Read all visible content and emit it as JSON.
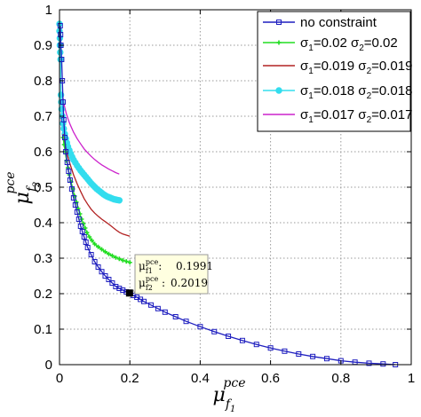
{
  "chart_data": {
    "type": "line",
    "xlabel": "μ_f1^pce",
    "ylabel": "μ_f2^pce",
    "xlim": [
      0,
      1
    ],
    "ylim": [
      0,
      1
    ],
    "xticks": [
      "0",
      "0.2",
      "0.4",
      "0.6",
      "0.8",
      "1"
    ],
    "yticks": [
      "0",
      "0.1",
      "0.2",
      "0.3",
      "0.4",
      "0.5",
      "0.6",
      "0.7",
      "0.8",
      "0.9",
      "1"
    ],
    "grid": true,
    "legend_position": "top-right",
    "series": [
      {
        "name": "no constraint",
        "color": "#1f1fbf",
        "marker": "square",
        "x": [
          0.002,
          0.003,
          0.004,
          0.006,
          0.008,
          0.01,
          0.012,
          0.015,
          0.018,
          0.022,
          0.026,
          0.03,
          0.035,
          0.04,
          0.045,
          0.05,
          0.055,
          0.06,
          0.065,
          0.07,
          0.075,
          0.08,
          0.09,
          0.1,
          0.11,
          0.12,
          0.13,
          0.14,
          0.15,
          0.16,
          0.17,
          0.18,
          0.19,
          0.1991,
          0.21,
          0.22,
          0.23,
          0.24,
          0.26,
          0.28,
          0.3,
          0.33,
          0.36,
          0.4,
          0.44,
          0.48,
          0.52,
          0.56,
          0.6,
          0.64,
          0.68,
          0.72,
          0.76,
          0.8,
          0.84,
          0.88,
          0.92,
          0.955
        ],
        "y": [
          0.955,
          0.93,
          0.9,
          0.86,
          0.8,
          0.74,
          0.69,
          0.64,
          0.6,
          0.57,
          0.545,
          0.52,
          0.495,
          0.47,
          0.45,
          0.43,
          0.41,
          0.39,
          0.375,
          0.36,
          0.345,
          0.33,
          0.31,
          0.29,
          0.275,
          0.262,
          0.25,
          0.24,
          0.23,
          0.22,
          0.215,
          0.21,
          0.205,
          0.2019,
          0.195,
          0.19,
          0.184,
          0.178,
          0.168,
          0.158,
          0.148,
          0.135,
          0.122,
          0.107,
          0.093,
          0.08,
          0.068,
          0.057,
          0.047,
          0.038,
          0.03,
          0.023,
          0.017,
          0.011,
          0.007,
          0.004,
          0.002,
          0.0
        ]
      },
      {
        "name": "σ1=0.02 σ2=0.02",
        "color": "#22dd22",
        "marker": "star",
        "x": [
          0.01,
          0.013,
          0.016,
          0.02,
          0.024,
          0.028,
          0.033,
          0.038,
          0.043,
          0.048,
          0.053,
          0.058,
          0.063,
          0.068,
          0.073,
          0.078,
          0.085,
          0.092,
          0.1,
          0.11,
          0.12,
          0.13,
          0.14,
          0.15,
          0.16,
          0.17,
          0.18,
          0.19,
          0.2
        ],
        "y": [
          0.64,
          0.62,
          0.6,
          0.575,
          0.555,
          0.535,
          0.515,
          0.495,
          0.475,
          0.458,
          0.44,
          0.425,
          0.41,
          0.397,
          0.385,
          0.372,
          0.36,
          0.35,
          0.34,
          0.332,
          0.325,
          0.318,
          0.312,
          0.307,
          0.302,
          0.298,
          0.294,
          0.291,
          0.288
        ]
      },
      {
        "name": "σ1=0.019 σ2=0.019",
        "color": "#b22222",
        "marker": "none",
        "x": [
          0.01,
          0.015,
          0.02,
          0.03,
          0.04,
          0.05,
          0.06,
          0.07,
          0.08,
          0.09,
          0.1,
          0.11,
          0.12,
          0.13,
          0.14,
          0.15,
          0.16,
          0.17,
          0.18,
          0.2
        ],
        "y": [
          0.65,
          0.625,
          0.6,
          0.565,
          0.535,
          0.51,
          0.488,
          0.468,
          0.452,
          0.438,
          0.427,
          0.418,
          0.41,
          0.403,
          0.396,
          0.388,
          0.38,
          0.373,
          0.368,
          0.362
        ]
      },
      {
        "name": "σ1=0.018 σ2=0.018",
        "color": "#33ddee",
        "marker": "circle",
        "x": [
          0.0,
          0.0,
          0.001,
          0.001,
          0.002,
          0.003,
          0.004,
          0.005,
          0.006,
          0.008,
          0.01,
          0.012,
          0.015,
          0.018,
          0.021,
          0.024,
          0.028,
          0.032,
          0.036,
          0.04,
          0.045,
          0.05,
          0.055,
          0.06,
          0.065,
          0.07,
          0.075,
          0.08,
          0.085,
          0.09,
          0.095,
          0.1,
          0.105,
          0.11,
          0.115,
          0.12,
          0.125,
          0.13,
          0.135,
          0.14,
          0.145,
          0.15,
          0.155,
          0.16,
          0.165,
          0.17
        ],
        "y": [
          0.96,
          0.94,
          0.92,
          0.9,
          0.88,
          0.86,
          0.76,
          0.74,
          0.72,
          0.7,
          0.68,
          0.665,
          0.65,
          0.637,
          0.625,
          0.614,
          0.604,
          0.594,
          0.585,
          0.577,
          0.569,
          0.561,
          0.554,
          0.547,
          0.541,
          0.535,
          0.529,
          0.523,
          0.517,
          0.511,
          0.506,
          0.501,
          0.496,
          0.492,
          0.488,
          0.484,
          0.48,
          0.477,
          0.474,
          0.472,
          0.47,
          0.468,
          0.466,
          0.465,
          0.464,
          0.463
        ]
      },
      {
        "name": "σ1=0.017 σ2=0.017",
        "color": "#cc22cc",
        "marker": "none",
        "x": [
          0.01,
          0.015,
          0.02,
          0.025,
          0.03,
          0.04,
          0.05,
          0.06,
          0.07,
          0.08,
          0.09,
          0.1,
          0.11,
          0.12,
          0.13,
          0.14,
          0.15,
          0.16,
          0.17
        ],
        "y": [
          0.75,
          0.725,
          0.705,
          0.69,
          0.677,
          0.655,
          0.637,
          0.622,
          0.608,
          0.597,
          0.587,
          0.578,
          0.57,
          0.563,
          0.557,
          0.551,
          0.546,
          0.541,
          0.537
        ]
      }
    ],
    "datatip": {
      "x": 0.1991,
      "y": 0.2019,
      "x_label": "μ_f1^pce:",
      "x_value": "0.1991",
      "y_label": "μ_f2^pce:",
      "y_value": "0.2019"
    }
  }
}
